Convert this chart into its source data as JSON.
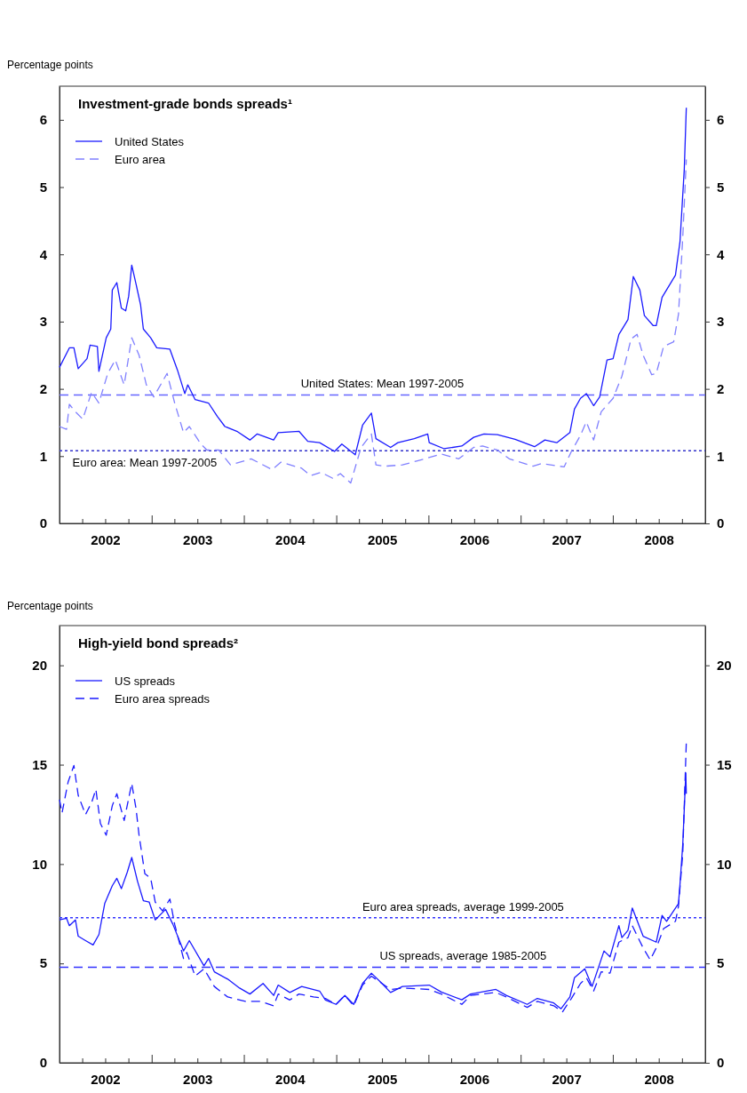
{
  "chart_data": [
    {
      "type": "line",
      "title": "Investment-grade bonds spreads¹",
      "ylabel": "Percentage points",
      "legend": "top left",
      "xlim": [
        "2002-01-01",
        "2009-01-01"
      ],
      "xticks": [
        {
          "value": "2002-01-01",
          "label": null
        },
        {
          "value": "2002-04-01",
          "label": null
        },
        {
          "value": "2002-07-01",
          "label": "2002"
        },
        {
          "value": "2002-10-01",
          "label": null
        },
        {
          "value": "2003-01-01",
          "label": null
        },
        {
          "value": "2003-04-01",
          "label": null
        },
        {
          "value": "2003-07-01",
          "label": "2003"
        },
        {
          "value": "2003-10-01",
          "label": null
        },
        {
          "value": "2004-01-01",
          "label": null
        },
        {
          "value": "2004-04-01",
          "label": null
        },
        {
          "value": "2004-07-01",
          "label": "2004"
        },
        {
          "value": "2004-10-01",
          "label": null
        },
        {
          "value": "2005-01-01",
          "label": null
        },
        {
          "value": "2005-04-01",
          "label": null
        },
        {
          "value": "2005-07-01",
          "label": "2005"
        },
        {
          "value": "2005-10-01",
          "label": null
        },
        {
          "value": "2006-01-01",
          "label": null
        },
        {
          "value": "2006-04-01",
          "label": null
        },
        {
          "value": "2006-07-01",
          "label": "2006"
        },
        {
          "value": "2006-10-01",
          "label": null
        },
        {
          "value": "2007-01-01",
          "label": null
        },
        {
          "value": "2007-04-01",
          "label": null
        },
        {
          "value": "2007-07-01",
          "label": "2007"
        },
        {
          "value": "2007-10-01",
          "label": null
        },
        {
          "value": "2008-01-01",
          "label": null
        },
        {
          "value": "2008-04-01",
          "label": null
        },
        {
          "value": "2008-07-01",
          "label": "2008"
        },
        {
          "value": "2008-10-01",
          "label": null
        },
        {
          "value": "2009-01-01",
          "label": null
        }
      ],
      "ylim": [
        0,
        6.5
      ],
      "yticks": [
        0,
        1,
        2,
        3,
        4,
        5,
        6
      ],
      "y2lim": [
        0,
        6.5
      ],
      "y2ticks": [
        0,
        1,
        2,
        3,
        4,
        5,
        6
      ],
      "ref_lines": [
        {
          "axis": "y",
          "value": 1.91,
          "label": "United States: Mean 1997-2005",
          "color": "#6666ff",
          "line_style": "dashed"
        },
        {
          "axis": "y",
          "value": 1.08,
          "label": "Euro area: Mean 1997-2005",
          "color": "#3333cc",
          "line_style": "dotted"
        }
      ],
      "series": [
        {
          "name": "United States",
          "color": "#1a1aff",
          "line_style": "solid",
          "x": [
            "2002-01-01",
            "2002-02-09",
            "2002-02-27",
            "2002-03-16",
            "2002-04-20",
            "2002-05-02",
            "2002-05-31",
            "2002-06-06",
            "2002-07-05",
            "2002-07-23",
            "2002-07-29",
            "2002-08-16",
            "2002-09-03",
            "2002-09-20",
            "2002-10-02",
            "2002-10-14",
            "2002-10-31",
            "2002-11-18",
            "2002-11-29",
            "2002-12-28",
            "2003-01-21",
            "2003-03-14",
            "2003-04-13",
            "2003-05-12",
            "2003-05-24",
            "2003-06-22",
            "2003-08-14",
            "2003-09-18",
            "2003-10-18",
            "2003-12-04",
            "2004-01-25",
            "2004-02-23",
            "2004-04-28",
            "2004-05-16",
            "2004-08-06",
            "2004-09-10",
            "2004-10-27",
            "2004-12-25",
            "2005-01-23",
            "2005-03-17",
            "2005-04-15",
            "2005-05-20",
            "2005-06-07",
            "2005-08-04",
            "2005-09-02",
            "2005-11-06",
            "2005-12-29",
            "2006-01-04",
            "2006-03-04",
            "2006-05-13",
            "2006-06-29",
            "2006-08-09",
            "2006-10-01",
            "2006-12-10",
            "2007-02-25",
            "2007-04-07",
            "2007-05-24",
            "2007-07-15",
            "2007-08-02",
            "2007-08-26",
            "2007-09-18",
            "2007-10-17",
            "2007-11-10",
            "2007-12-09",
            "2008-01-02",
            "2008-01-25",
            "2008-03-01",
            "2008-03-22",
            "2008-04-17",
            "2008-05-05",
            "2008-06-09",
            "2008-06-21",
            "2008-07-14",
            "2008-09-05",
            "2008-09-23",
            "2008-10-10",
            "2008-10-18"
          ],
          "values": [
            2.32,
            2.61,
            2.61,
            2.3,
            2.45,
            2.65,
            2.63,
            2.26,
            2.76,
            2.89,
            3.47,
            3.58,
            3.2,
            3.16,
            3.38,
            3.84,
            3.56,
            3.25,
            2.89,
            2.76,
            2.61,
            2.59,
            2.28,
            1.93,
            2.06,
            1.84,
            1.79,
            1.59,
            1.44,
            1.37,
            1.24,
            1.33,
            1.24,
            1.35,
            1.37,
            1.22,
            1.2,
            1.07,
            1.18,
            1.02,
            1.46,
            1.64,
            1.26,
            1.13,
            1.2,
            1.26,
            1.33,
            1.2,
            1.11,
            1.15,
            1.28,
            1.33,
            1.32,
            1.25,
            1.14,
            1.24,
            1.2,
            1.35,
            1.7,
            1.86,
            1.93,
            1.75,
            1.88,
            2.43,
            2.45,
            2.81,
            3.03,
            3.67,
            3.47,
            3.09,
            2.94,
            2.94,
            3.36,
            3.69,
            4.19,
            5.27,
            6.18
          ]
        },
        {
          "name": "Euro area",
          "color": "#8080ff",
          "line_style": "dashed",
          "x": [
            "2002-01-01",
            "2002-01-29",
            "2002-02-09",
            "2002-03-05",
            "2002-04-03",
            "2002-05-08",
            "2002-06-06",
            "2002-07-11",
            "2002-08-10",
            "2002-09-14",
            "2002-10-14",
            "2002-11-12",
            "2002-12-11",
            "2003-01-09",
            "2003-03-03",
            "2003-04-02",
            "2003-05-07",
            "2003-05-30",
            "2003-07-15",
            "2003-08-08",
            "2003-09-24",
            "2003-11-09",
            "2004-01-30",
            "2004-04-22",
            "2004-05-27",
            "2004-08-17",
            "2004-09-21",
            "2004-11-01",
            "2004-12-18",
            "2005-01-17",
            "2005-02-27",
            "2005-04-09",
            "2005-05-20",
            "2005-06-07",
            "2005-07-12",
            "2005-09-20",
            "2005-11-18",
            "2006-02-21",
            "2006-05-01",
            "2006-06-29",
            "2006-08-03",
            "2006-10-01",
            "2006-11-17",
            "2007-02-19",
            "2007-03-26",
            "2007-06-22",
            "2007-07-21",
            "2007-08-26",
            "2007-09-18",
            "2007-10-17",
            "2007-11-16",
            "2008-01-02",
            "2008-02-06",
            "2008-03-13",
            "2008-04-06",
            "2008-04-30",
            "2008-06-03",
            "2008-06-21",
            "2008-07-20",
            "2008-08-29",
            "2008-09-17",
            "2008-10-04",
            "2008-10-18"
          ],
          "values": [
            1.44,
            1.4,
            1.77,
            1.66,
            1.55,
            1.95,
            1.79,
            2.23,
            2.43,
            2.06,
            2.76,
            2.5,
            2.06,
            1.88,
            2.23,
            1.79,
            1.35,
            1.44,
            1.18,
            1.09,
            1.09,
            0.87,
            0.96,
            0.8,
            0.91,
            0.82,
            0.71,
            0.76,
            0.67,
            0.74,
            0.6,
            1.13,
            1.33,
            0.87,
            0.85,
            0.87,
            0.93,
            1.03,
            0.96,
            1.13,
            1.15,
            1.09,
            0.96,
            0.85,
            0.89,
            0.84,
            1.07,
            1.31,
            1.51,
            1.24,
            1.66,
            1.86,
            2.19,
            2.74,
            2.81,
            2.5,
            2.21,
            2.23,
            2.63,
            2.7,
            3.11,
            4.26,
            5.41
          ]
        }
      ]
    },
    {
      "type": "line",
      "title": "High-yield bond spreads²",
      "ylabel": "Percentage points",
      "legend": "top left",
      "xlim": [
        "2002-01-01",
        "2009-01-01"
      ],
      "xticks": [
        {
          "value": "2002-01-01",
          "label": null
        },
        {
          "value": "2002-04-01",
          "label": null
        },
        {
          "value": "2002-07-01",
          "label": "2002"
        },
        {
          "value": "2002-10-01",
          "label": null
        },
        {
          "value": "2003-01-01",
          "label": null
        },
        {
          "value": "2003-04-01",
          "label": null
        },
        {
          "value": "2003-07-01",
          "label": "2003"
        },
        {
          "value": "2003-10-01",
          "label": null
        },
        {
          "value": "2004-01-01",
          "label": null
        },
        {
          "value": "2004-04-01",
          "label": null
        },
        {
          "value": "2004-07-01",
          "label": "2004"
        },
        {
          "value": "2004-10-01",
          "label": null
        },
        {
          "value": "2005-01-01",
          "label": null
        },
        {
          "value": "2005-04-01",
          "label": null
        },
        {
          "value": "2005-07-01",
          "label": "2005"
        },
        {
          "value": "2005-10-01",
          "label": null
        },
        {
          "value": "2006-01-01",
          "label": null
        },
        {
          "value": "2006-04-01",
          "label": null
        },
        {
          "value": "2006-07-01",
          "label": "2006"
        },
        {
          "value": "2006-10-01",
          "label": null
        },
        {
          "value": "2007-01-01",
          "label": null
        },
        {
          "value": "2007-04-01",
          "label": null
        },
        {
          "value": "2007-07-01",
          "label": "2007"
        },
        {
          "value": "2007-10-01",
          "label": null
        },
        {
          "value": "2008-01-01",
          "label": null
        },
        {
          "value": "2008-04-01",
          "label": null
        },
        {
          "value": "2008-07-01",
          "label": "2008"
        },
        {
          "value": "2008-10-01",
          "label": null
        },
        {
          "value": "2009-01-01",
          "label": null
        }
      ],
      "ylim": [
        0,
        22
      ],
      "yticks": [
        0,
        5,
        10,
        15,
        20
      ],
      "y2lim": [
        0,
        22
      ],
      "y2ticks": [
        0,
        5,
        10,
        15,
        20
      ],
      "ref_lines": [
        {
          "axis": "y",
          "value": 7.3,
          "label": "Euro area spreads, average 1999-2005",
          "color": "#3333ff",
          "line_style": "dotted"
        },
        {
          "axis": "y",
          "value": 4.81,
          "label": "US spreads, average 1985-2005",
          "color": "#3333ff",
          "line_style": "dashed"
        }
      ],
      "series": [
        {
          "name": "US spreads",
          "color": "#1a1aff",
          "line_style": "solid",
          "x": [
            "2002-01-01",
            "2002-01-29",
            "2002-02-09",
            "2002-03-05",
            "2002-03-16",
            "2002-04-14",
            "2002-05-14",
            "2002-06-06",
            "2002-06-29",
            "2002-07-29",
            "2002-08-16",
            "2002-09-03",
            "2002-09-26",
            "2002-10-14",
            "2002-11-06",
            "2002-11-29",
            "2002-12-22",
            "2003-01-15",
            "2003-02-25",
            "2003-03-26",
            "2003-05-07",
            "2003-05-30",
            "2003-07-27",
            "2003-08-14",
            "2003-09-06",
            "2003-10-29",
            "2003-12-15",
            "2004-01-25",
            "2004-03-17",
            "2004-04-28",
            "2004-05-16",
            "2004-07-01",
            "2004-08-17",
            "2004-10-27",
            "2004-11-19",
            "2004-12-31",
            "2005-02-04",
            "2005-03-11",
            "2005-04-15",
            "2005-05-20",
            "2005-07-01",
            "2005-08-04",
            "2005-09-20",
            "2006-01-04",
            "2006-02-21",
            "2006-05-13",
            "2006-06-17",
            "2006-09-25",
            "2006-11-05",
            "2007-01-27",
            "2007-03-08",
            "2007-05-12",
            "2007-06-10",
            "2007-07-15",
            "2007-08-02",
            "2007-09-12",
            "2007-10-11",
            "2007-11-27",
            "2007-12-21",
            "2008-01-25",
            "2008-02-06",
            "2008-03-01",
            "2008-03-18",
            "2008-04-30",
            "2008-06-21",
            "2008-07-14",
            "2008-08-01",
            "2008-09-17",
            "2008-09-23",
            "2008-10-04",
            "2008-10-16",
            "2008-10-18"
          ],
          "values": [
            7.19,
            7.27,
            6.9,
            7.19,
            6.37,
            6.15,
            5.93,
            6.45,
            8.01,
            8.91,
            9.28,
            8.76,
            9.58,
            10.33,
            9.13,
            8.16,
            8.09,
            7.19,
            7.72,
            6.97,
            5.63,
            6.15,
            4.88,
            5.25,
            4.58,
            4.21,
            3.76,
            3.46,
            3.99,
            3.39,
            3.91,
            3.54,
            3.84,
            3.61,
            3.16,
            2.94,
            3.39,
            2.94,
            3.99,
            4.51,
            3.99,
            3.54,
            3.84,
            3.91,
            3.56,
            3.17,
            3.46,
            3.69,
            3.39,
            2.94,
            3.24,
            3.01,
            2.72,
            3.31,
            4.28,
            4.73,
            3.84,
            5.63,
            5.33,
            6.9,
            6.3,
            6.67,
            7.79,
            6.37,
            6.07,
            7.42,
            7.12,
            8.01,
            8.99,
            11.0,
            14.58,
            13.54
          ]
        },
        {
          "name": "Euro area spreads",
          "color": "#1a1aff",
          "line_style": "dashed",
          "x": [
            "2002-01-01",
            "2002-01-11",
            "2002-02-04",
            "2002-02-27",
            "2002-03-16",
            "2002-04-14",
            "2002-05-08",
            "2002-05-25",
            "2002-06-12",
            "2002-07-05",
            "2002-07-29",
            "2002-08-16",
            "2002-09-14",
            "2002-10-14",
            "2002-10-31",
            "2002-11-12",
            "2002-12-05",
            "2002-12-28",
            "2003-01-15",
            "2003-02-13",
            "2003-03-14",
            "2003-04-02",
            "2003-05-07",
            "2003-05-20",
            "2003-06-22",
            "2003-07-27",
            "2003-09-06",
            "2003-10-29",
            "2004-01-07",
            "2004-03-06",
            "2004-04-28",
            "2004-05-16",
            "2004-07-01",
            "2004-08-06",
            "2004-10-03",
            "2004-11-19",
            "2004-12-31",
            "2005-02-04",
            "2005-03-11",
            "2005-04-15",
            "2005-05-20",
            "2005-07-01",
            "2005-08-04",
            "2005-09-20",
            "2006-01-04",
            "2006-02-21",
            "2006-05-13",
            "2006-06-17",
            "2006-09-25",
            "2006-11-05",
            "2007-01-27",
            "2007-03-08",
            "2007-05-12",
            "2007-06-16",
            "2007-07-21",
            "2007-08-26",
            "2007-09-18",
            "2007-10-17",
            "2007-11-16",
            "2007-12-21",
            "2008-01-25",
            "2008-03-01",
            "2008-03-18",
            "2008-04-30",
            "2008-05-28",
            "2008-06-21",
            "2008-07-20",
            "2008-09-05",
            "2008-09-17",
            "2008-10-04",
            "2008-10-18"
          ],
          "values": [
            13.24,
            12.57,
            14.13,
            14.96,
            13.46,
            12.49,
            13.09,
            13.76,
            12.04,
            11.45,
            12.94,
            13.54,
            12.19,
            14.06,
            12.79,
            11.45,
            9.51,
            9.28,
            8.09,
            7.64,
            8.24,
            6.97,
            5.25,
            5.55,
            4.36,
            4.73,
            3.84,
            3.31,
            3.09,
            3.09,
            2.87,
            3.46,
            3.16,
            3.46,
            3.31,
            3.24,
            2.94,
            3.39,
            2.87,
            3.91,
            4.36,
            3.99,
            3.69,
            3.76,
            3.69,
            3.46,
            2.94,
            3.39,
            3.54,
            3.31,
            2.79,
            3.09,
            2.87,
            2.57,
            3.24,
            3.99,
            4.28,
            3.61,
            4.58,
            4.51,
            6.07,
            6.3,
            6.9,
            5.78,
            5.18,
            5.78,
            6.75,
            7.12,
            7.87,
            10.55,
            16.15
          ]
        }
      ]
    }
  ]
}
